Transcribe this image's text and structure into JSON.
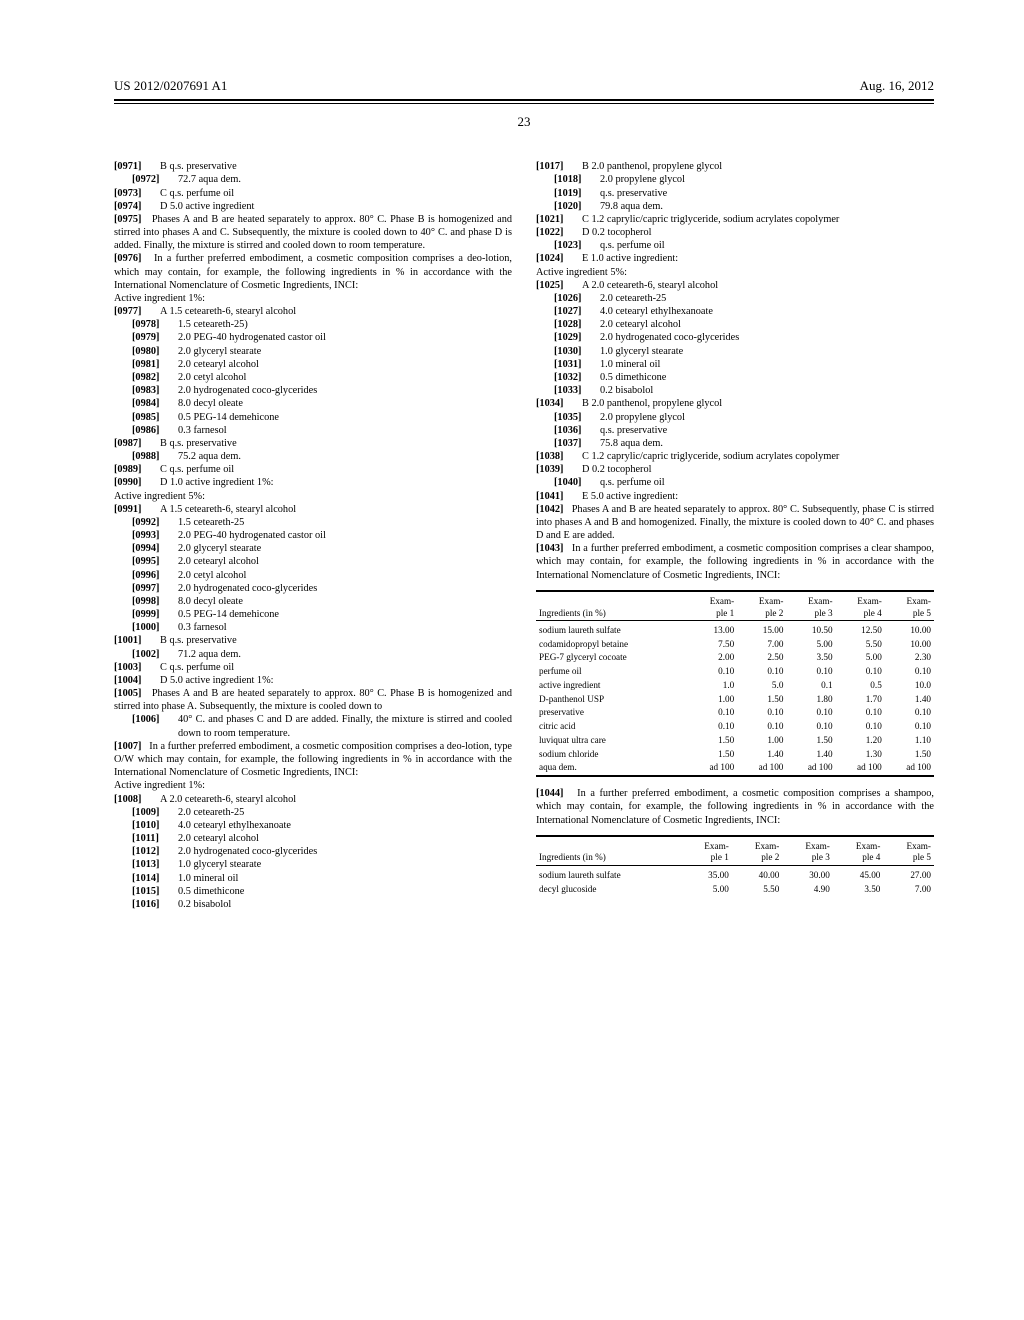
{
  "header": {
    "pubnum": "US 2012/0207691 A1",
    "date": "Aug. 16, 2012",
    "page": "23"
  },
  "left": {
    "l0971": "B q.s. preservative",
    "l0972": "72.7 aqua dem.",
    "l0973": "C q.s. perfume oil",
    "l0974": "D 5.0 active ingredient",
    "p0975": "Phases A and B are heated separately to approx. 80° C. Phase B is homogenized and stirred into phases A and C. Subsequently, the mixture is cooled down to 40° C. and phase D is added. Finally, the mixture is stirred and cooled down to room temperature.",
    "p0976": "In a further preferred embodiment, a cosmetic composition comprises a deo-lotion, which may contain, for example, the following ingredients in % in accordance with the International Nomenclature of Cosmetic Ingredients, INCI:",
    "active1": "Active ingredient 1%:",
    "l0977": "A 1.5 ceteareth-6, stearyl alcohol",
    "l0978": "1.5 ceteareth-25)",
    "l0979": "2.0 PEG-40 hydrogenated castor oil",
    "l0980": "2.0 glyceryl stearate",
    "l0981": "2.0 cetearyl alcohol",
    "l0982": "2.0 cetyl alcohol",
    "l0983": "2.0 hydrogenated coco-glycerides",
    "l0984": "8.0 decyl oleate",
    "l0985": "0.5 PEG-14 demehicone",
    "l0986": "0.3 farnesol",
    "l0987": "B q.s. preservative",
    "l0988": "75.2 aqua dem.",
    "l0989": "C q.s. perfume oil",
    "l0990": "D 1.0 active ingredient 1%:",
    "active5a": "Active ingredient 5%:",
    "l0991": "A 1.5 ceteareth-6, stearyl alcohol",
    "l0992": "1.5 ceteareth-25",
    "l0993": "2.0 PEG-40 hydrogenated castor oil",
    "l0994": "2.0 glyceryl stearate",
    "l0995": "2.0 cetearyl alcohol",
    "l0996": "2.0 cetyl alcohol",
    "l0997": "2.0 hydrogenated coco-glycerides",
    "l0998": "8.0 decyl oleate",
    "l0999": "0.5 PEG-14 demehicone",
    "l1000": "0.3 farnesol",
    "l1001": "B q.s. preservative",
    "l1002": "71.2 aqua dem.",
    "l1003": "C q.s. perfume oil",
    "l1004": "D 5.0 active ingredient 1%:",
    "p1005": "Phases A and B are heated separately to approx. 80° C. Phase B is homogenized and stirred into phase A. Subsequently, the mixture is cooled down to",
    "l1006": "40° C. and phases C and D are added. Finally, the mixture is stirred and cooled down to room temperature.",
    "p1007": "In a further preferred embodiment, a cosmetic composition comprises a deo-lotion, type O/W which may contain, for example, the following ingredients in % in accordance with the International Nomenclature of Cosmetic Ingredients, INCI:",
    "active1b": "Active ingredient 1%:",
    "l1008": "A 2.0 ceteareth-6, stearyl alcohol",
    "l1009": "2.0 ceteareth-25",
    "l1010": "4.0 cetearyl ethylhexanoate",
    "l1011": "2.0 cetearyl alcohol",
    "l1012": "2.0 hydrogenated coco-glycerides",
    "l1013": "1.0 glyceryl stearate",
    "l1014": "1.0 mineral oil",
    "l1015": "0.5 dimethicone",
    "l1016": "0.2 bisabolol"
  },
  "right": {
    "l1017": "B 2.0 panthenol, propylene glycol",
    "l1018": "2.0 propylene glycol",
    "l1019": "q.s. preservative",
    "l1020": "79.8 aqua dem.",
    "l1021": "C 1.2 caprylic/capric triglyceride, sodium acrylates copolymer",
    "l1022": "D 0.2 tocopherol",
    "l1023": "q.s. perfume oil",
    "l1024": "E 1.0 active ingredient:",
    "active5b": "Active ingredient 5%:",
    "l1025": "A 2.0 ceteareth-6, stearyl alcohol",
    "l1026": "2.0 ceteareth-25",
    "l1027": "4.0 cetearyl ethylhexanoate",
    "l1028": "2.0 cetearyl alcohol",
    "l1029": "2.0 hydrogenated coco-glycerides",
    "l1030": "1.0 glyceryl stearate",
    "l1031": "1.0 mineral oil",
    "l1032": "0.5 dimethicone",
    "l1033": "0.2 bisabolol",
    "l1034": "B 2.0 panthenol, propylene glycol",
    "l1035": "2.0 propylene glycol",
    "l1036": "q.s. preservative",
    "l1037": "75.8 aqua dem.",
    "l1038": "C 1.2 caprylic/capric triglyceride, sodium acrylates copolymer",
    "l1039": "D 0.2 tocopherol",
    "l1040": "q.s. perfume oil",
    "l1041": "E 5.0 active ingredient:",
    "p1042": "Phases A and B are heated separately to approx. 80° C. Subsequently, phase C is stirred into phases A and B and homogenized. Finally, the mixture is cooled down to 40° C. and phases D and E are added.",
    "p1043": "In a further preferred embodiment, a cosmetic composition comprises a clear shampoo, which may contain, for example, the following ingredients in % in accordance with the International Nomenclature of Cosmetic Ingredients, INCI:",
    "table1": {
      "header_label": "Ingredients (in %)",
      "cols": [
        "Exam-\nple 1",
        "Exam-\nple 2",
        "Exam-\nple 3",
        "Exam-\nple 4",
        "Exam-\nple 5"
      ],
      "rows": [
        [
          "sodium laureth sulfate",
          "13.00",
          "15.00",
          "10.50",
          "12.50",
          "10.00"
        ],
        [
          "codamidopropyl betaine",
          "7.50",
          "7.00",
          "5.00",
          "5.50",
          "10.00"
        ],
        [
          "PEG-7 glyceryl cocoate",
          "2.00",
          "2.50",
          "3.50",
          "5.00",
          "2.30"
        ],
        [
          "perfume oil",
          "0.10",
          "0.10",
          "0.10",
          "0.10",
          "0.10"
        ],
        [
          "active ingredient",
          "1.0",
          "5.0",
          "0.1",
          "0.5",
          "10.0"
        ],
        [
          "D-panthenol USP",
          "1.00",
          "1.50",
          "1.80",
          "1.70",
          "1.40"
        ],
        [
          "preservative",
          "0.10",
          "0.10",
          "0.10",
          "0.10",
          "0.10"
        ],
        [
          "citric acid",
          "0.10",
          "0.10",
          "0.10",
          "0.10",
          "0.10"
        ],
        [
          "luviquat ultra care",
          "1.50",
          "1.00",
          "1.50",
          "1.20",
          "1.10"
        ],
        [
          "sodium chloride",
          "1.50",
          "1.40",
          "1.40",
          "1.30",
          "1.50"
        ],
        [
          "aqua dem.",
          "ad 100",
          "ad 100",
          "ad 100",
          "ad 100",
          "ad 100"
        ]
      ]
    },
    "p1044": "In a further preferred embodiment, a cosmetic composition comprises a shampoo, which may contain, for example, the following ingredients in % in accordance with the International Nomenclature of Cosmetic Ingredients, INCI:",
    "table2": {
      "header_label": "Ingredients (in %)",
      "cols": [
        "Exam-\nple 1",
        "Exam-\nple 2",
        "Exam-\nple 3",
        "Exam-\nple 4",
        "Exam-\nple 5"
      ],
      "rows": [
        [
          "sodium laureth sulfate",
          "35.00",
          "40.00",
          "30.00",
          "45.00",
          "27.00"
        ],
        [
          "decyl glucoside",
          "5.00",
          "5.50",
          "4.90",
          "3.50",
          "7.00"
        ]
      ]
    }
  }
}
